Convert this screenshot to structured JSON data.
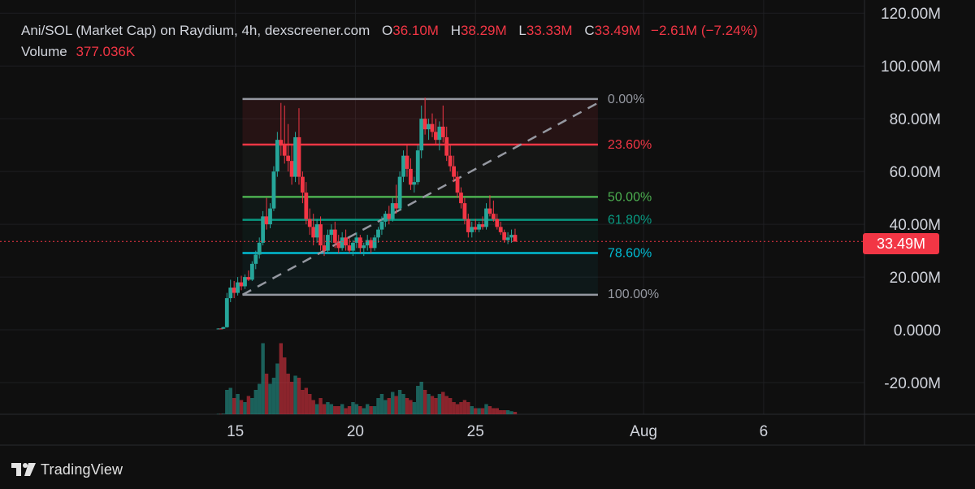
{
  "legend": {
    "title": "Ani/SOL (Market Cap) on Raydium, 4h, dexscreener.com",
    "o_key": "O",
    "o_val": "36.10M",
    "h_key": "H",
    "h_val": "38.29M",
    "l_key": "L",
    "l_val": "33.33M",
    "c_key": "C",
    "c_val": "33.49M",
    "change": "−2.61M (−7.24%)",
    "volume_label": "Volume",
    "volume_val": "377.036K"
  },
  "brand": {
    "name": "TradingView"
  },
  "current_price_label": "33.49M",
  "colors": {
    "up": "#26a69a",
    "down": "#f23645",
    "background": "#0f0f0f",
    "fib_0": "#9598a1",
    "fib_236": "#f23645",
    "fib_50": "#4caf50",
    "fib_618": "#089981",
    "fib_786": "#00bcd4",
    "fib_100": "#9598a1"
  },
  "chart_data": {
    "type": "candlestick",
    "title": "Ani/SOL (Market Cap) on Raydium, 4h, dexscreener.com",
    "y_unit": "M",
    "ylim": [
      -32,
      125
    ],
    "y_ticks": [
      "120.00M",
      "100.00M",
      "80.00M",
      "60.00M",
      "40.00M",
      "20.00M",
      "0.0000",
      "-20.00M"
    ],
    "y_tick_values": [
      120,
      100,
      80,
      60,
      40,
      20,
      0,
      -20
    ],
    "x_ticks": [
      "15",
      "20",
      "25",
      "Aug",
      "6"
    ],
    "x_tick_days": [
      15,
      20,
      25,
      32,
      37
    ],
    "x_range_days": [
      5.2,
      41.2
    ],
    "fib_retracement": [
      {
        "label": "0.00%",
        "value": 87.5
      },
      {
        "label": "23.60%",
        "value": 70.2
      },
      {
        "label": "50.00%",
        "value": 50.4
      },
      {
        "label": "61.80%",
        "value": 41.7
      },
      {
        "label": "78.60%",
        "value": 29.1
      },
      {
        "label": "100.00%",
        "value": 13.3
      }
    ],
    "fib_trend_line": {
      "start": [
        15.3,
        13.3
      ],
      "end": [
        24.8,
        77.0
      ]
    },
    "fib_trend_line_extended_end": [
      30.1,
      86.0
    ],
    "current_price": 33.49,
    "candles": [
      [
        14.3,
        0.4,
        0.6,
        0.2,
        0.5
      ],
      [
        14.4,
        0.5,
        0.6,
        0.3,
        0.4
      ],
      [
        14.5,
        0.4,
        1.2,
        0.3,
        1.0
      ],
      [
        14.65,
        1.0,
        14.0,
        0.8,
        12.0
      ],
      [
        14.8,
        12.0,
        19.0,
        10.5,
        16.0
      ],
      [
        14.95,
        16.0,
        18.5,
        12.0,
        14.0
      ],
      [
        15.1,
        14.0,
        20.0,
        13.0,
        18.0
      ],
      [
        15.25,
        18.0,
        20.5,
        15.0,
        16.5
      ],
      [
        15.4,
        16.5,
        21.0,
        15.5,
        20.0
      ],
      [
        15.55,
        20.0,
        22.5,
        18.5,
        19.0
      ],
      [
        15.7,
        19.0,
        26.0,
        18.5,
        25.0
      ],
      [
        15.85,
        25.0,
        30.0,
        23.0,
        28.5
      ],
      [
        16.0,
        28.5,
        35.0,
        27.0,
        33.0
      ],
      [
        16.15,
        33.0,
        45.0,
        32.0,
        43.0
      ],
      [
        16.3,
        43.0,
        50.0,
        38.0,
        40.0
      ],
      [
        16.45,
        40.0,
        48.0,
        38.5,
        46.0
      ],
      [
        16.6,
        46.0,
        62.0,
        45.0,
        60.0
      ],
      [
        16.75,
        60.0,
        75.0,
        58.0,
        72.0
      ],
      [
        16.9,
        72.0,
        86.0,
        66.0,
        70.0
      ],
      [
        17.05,
        70.0,
        85.0,
        63.0,
        66.0
      ],
      [
        17.2,
        66.0,
        78.0,
        60.0,
        64.0
      ],
      [
        17.35,
        64.0,
        70.0,
        55.0,
        58.0
      ],
      [
        17.5,
        58.0,
        75.0,
        56.0,
        73.0
      ],
      [
        17.65,
        73.0,
        84.0,
        55.0,
        58.0
      ],
      [
        17.8,
        58.0,
        60.0,
        48.0,
        52.0
      ],
      [
        17.95,
        52.0,
        56.0,
        40.0,
        42.0
      ],
      [
        18.1,
        42.0,
        46.0,
        36.0,
        39.0
      ],
      [
        18.25,
        39.0,
        44.0,
        32.0,
        35.0
      ],
      [
        18.4,
        35.0,
        42.0,
        33.0,
        40.0
      ],
      [
        18.55,
        40.0,
        43.0,
        30.0,
        32.0
      ],
      [
        18.7,
        32.0,
        36.0,
        28.0,
        30.0
      ],
      [
        18.85,
        30.0,
        38.0,
        29.0,
        36.0
      ],
      [
        19.0,
        36.0,
        40.0,
        33.0,
        38.0
      ],
      [
        19.15,
        38.0,
        41.0,
        31.0,
        33.0
      ],
      [
        19.3,
        33.0,
        36.0,
        29.0,
        31.0
      ],
      [
        19.45,
        31.0,
        37.0,
        30.0,
        35.0
      ],
      [
        19.6,
        35.0,
        38.0,
        30.0,
        32.0
      ],
      [
        19.75,
        32.0,
        35.0,
        29.0,
        30.0
      ],
      [
        19.9,
        30.0,
        34.0,
        28.0,
        33.0
      ],
      [
        20.05,
        33.0,
        37.0,
        31.0,
        35.0
      ],
      [
        20.2,
        35.0,
        36.0,
        29.0,
        31.0
      ],
      [
        20.35,
        31.0,
        33.0,
        28.0,
        32.0
      ],
      [
        20.5,
        32.0,
        36.0,
        30.0,
        34.0
      ],
      [
        20.65,
        34.0,
        35.0,
        29.0,
        31.0
      ],
      [
        20.8,
        31.0,
        36.0,
        30.0,
        35.0
      ],
      [
        20.95,
        35.0,
        39.0,
        33.0,
        38.0
      ],
      [
        21.1,
        38.0,
        43.0,
        36.0,
        41.0
      ],
      [
        21.25,
        41.0,
        45.0,
        39.0,
        44.0
      ],
      [
        21.4,
        44.0,
        47.0,
        40.0,
        42.0
      ],
      [
        21.55,
        42.0,
        50.0,
        41.0,
        48.0
      ],
      [
        21.7,
        48.0,
        55.0,
        44.0,
        46.0
      ],
      [
        21.85,
        46.0,
        60.0,
        45.0,
        58.0
      ],
      [
        22.0,
        58.0,
        68.0,
        56.0,
        66.0
      ],
      [
        22.15,
        66.0,
        70.0,
        58.0,
        61.0
      ],
      [
        22.3,
        61.0,
        65.0,
        53.0,
        55.0
      ],
      [
        22.45,
        55.0,
        58.0,
        52.0,
        56.0
      ],
      [
        22.6,
        56.0,
        70.0,
        55.0,
        68.0
      ],
      [
        22.75,
        68.0,
        85.0,
        65.0,
        80.0
      ],
      [
        22.9,
        80.0,
        88.0,
        74.0,
        76.0
      ],
      [
        23.05,
        76.0,
        80.0,
        72.0,
        78.0
      ],
      [
        23.2,
        78.0,
        82.0,
        73.0,
        75.0
      ],
      [
        23.35,
        75.0,
        80.0,
        70.0,
        72.0
      ],
      [
        23.5,
        72.0,
        79.0,
        68.0,
        77.0
      ],
      [
        23.65,
        77.0,
        85.0,
        71.0,
        73.0
      ],
      [
        23.8,
        73.0,
        77.0,
        64.0,
        66.0
      ],
      [
        23.95,
        66.0,
        70.0,
        60.0,
        62.0
      ],
      [
        24.1,
        62.0,
        66.0,
        56.0,
        58.0
      ],
      [
        24.25,
        58.0,
        60.0,
        50.0,
        52.0
      ],
      [
        24.4,
        52.0,
        54.0,
        46.0,
        48.0
      ],
      [
        24.55,
        48.0,
        50.0,
        40.0,
        42.0
      ],
      [
        24.7,
        42.0,
        44.0,
        35.0,
        37.0
      ],
      [
        24.85,
        37.0,
        41.0,
        35.0,
        39.0
      ],
      [
        25.0,
        39.0,
        42.0,
        37.0,
        38.0
      ],
      [
        25.15,
        38.0,
        41.0,
        37.0,
        40.0
      ],
      [
        25.3,
        40.0,
        43.0,
        38.0,
        39.0
      ],
      [
        25.45,
        39.0,
        48.0,
        38.0,
        46.0
      ],
      [
        25.6,
        46.0,
        51.0,
        43.0,
        44.0
      ],
      [
        25.75,
        44.0,
        49.0,
        41.0,
        42.0
      ],
      [
        25.9,
        42.0,
        44.0,
        38.0,
        39.0
      ],
      [
        26.05,
        39.0,
        41.0,
        36.0,
        37.0
      ],
      [
        26.2,
        37.0,
        38.0,
        33.0,
        34.0
      ],
      [
        26.35,
        34.0,
        37.0,
        32.5,
        35.0
      ],
      [
        26.5,
        35.0,
        38.0,
        33.0,
        36.0
      ],
      [
        26.65,
        36.0,
        38.3,
        33.3,
        33.5
      ]
    ],
    "volume_scale_max": 40,
    "volume": [
      [
        14.3,
        0.2
      ],
      [
        14.4,
        0.2
      ],
      [
        14.5,
        0.3
      ],
      [
        14.65,
        12
      ],
      [
        14.8,
        13
      ],
      [
        14.95,
        8
      ],
      [
        15.1,
        10
      ],
      [
        15.25,
        7
      ],
      [
        15.4,
        6
      ],
      [
        15.55,
        9
      ],
      [
        15.7,
        8
      ],
      [
        15.85,
        12
      ],
      [
        16.0,
        15
      ],
      [
        16.15,
        35
      ],
      [
        16.3,
        20
      ],
      [
        16.45,
        15
      ],
      [
        16.6,
        18
      ],
      [
        16.75,
        25
      ],
      [
        16.9,
        35
      ],
      [
        17.05,
        28
      ],
      [
        17.2,
        20
      ],
      [
        17.35,
        16
      ],
      [
        17.5,
        19
      ],
      [
        17.65,
        18
      ],
      [
        17.8,
        12
      ],
      [
        17.95,
        13
      ],
      [
        18.1,
        10
      ],
      [
        18.25,
        7
      ],
      [
        18.4,
        5
      ],
      [
        18.55,
        8
      ],
      [
        18.7,
        5
      ],
      [
        18.85,
        6
      ],
      [
        19.0,
        5
      ],
      [
        19.15,
        4
      ],
      [
        19.3,
        4
      ],
      [
        19.45,
        5
      ],
      [
        19.6,
        3
      ],
      [
        19.75,
        4
      ],
      [
        19.9,
        6
      ],
      [
        20.05,
        5
      ],
      [
        20.2,
        4
      ],
      [
        20.35,
        3
      ],
      [
        20.5,
        5
      ],
      [
        20.65,
        4
      ],
      [
        20.8,
        4
      ],
      [
        20.95,
        8
      ],
      [
        21.1,
        10
      ],
      [
        21.25,
        7
      ],
      [
        21.4,
        8
      ],
      [
        21.55,
        11
      ],
      [
        21.7,
        9
      ],
      [
        21.85,
        12
      ],
      [
        22.0,
        10
      ],
      [
        22.15,
        8
      ],
      [
        22.3,
        7
      ],
      [
        22.45,
        6
      ],
      [
        22.6,
        14
      ],
      [
        22.75,
        16
      ],
      [
        22.9,
        12
      ],
      [
        23.05,
        10
      ],
      [
        23.2,
        9
      ],
      [
        23.35,
        8
      ],
      [
        23.5,
        10
      ],
      [
        23.65,
        11
      ],
      [
        23.8,
        9
      ],
      [
        23.95,
        8
      ],
      [
        24.1,
        6
      ],
      [
        24.25,
        5
      ],
      [
        24.4,
        6
      ],
      [
        24.55,
        7
      ],
      [
        24.7,
        6
      ],
      [
        24.85,
        4
      ],
      [
        25.0,
        3
      ],
      [
        25.15,
        3
      ],
      [
        25.3,
        3
      ],
      [
        25.45,
        5
      ],
      [
        25.6,
        4
      ],
      [
        25.75,
        3
      ],
      [
        25.9,
        3
      ],
      [
        26.05,
        2
      ],
      [
        26.2,
        2
      ],
      [
        26.35,
        2
      ],
      [
        26.5,
        1.5
      ],
      [
        26.65,
        1.2
      ]
    ]
  }
}
